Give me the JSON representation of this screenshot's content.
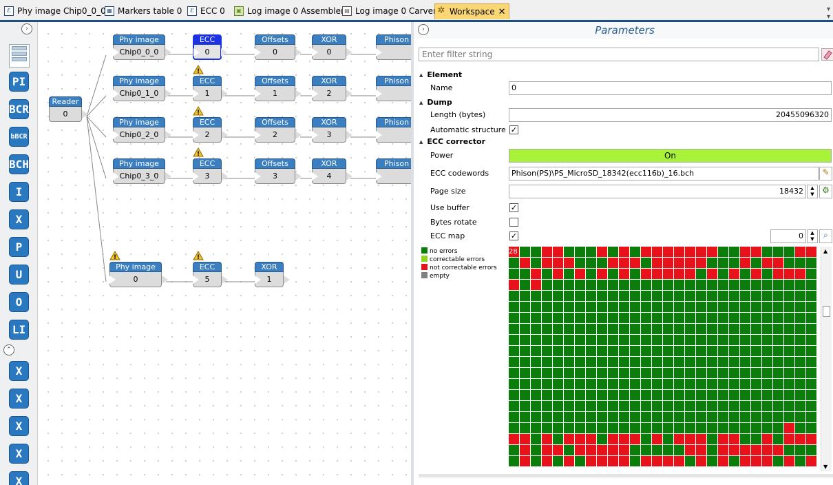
{
  "tabs": [
    {
      "label": "Phy image Chip0_0_0",
      "icon": "phy-image-icon",
      "active": false
    },
    {
      "label": "Markers table 0",
      "icon": "table-icon",
      "active": false
    },
    {
      "label": "ECC 0",
      "icon": "ecc-icon",
      "active": false
    },
    {
      "label": "Log image 0 Assembler",
      "icon": "assembler-icon",
      "active": false
    },
    {
      "label": "Log image 0 Carver",
      "icon": "carver-icon",
      "active": false
    },
    {
      "label": "Workspace",
      "icon": "workspace-icon",
      "active": true
    }
  ],
  "toolbar": {
    "tools": [
      "PI",
      "BCR",
      "bBCR",
      "BCH",
      "I",
      "X",
      "P",
      "U",
      "O",
      "LI",
      "X",
      "X",
      "X",
      "X",
      "X"
    ]
  },
  "graph": {
    "reader": {
      "title": "Reader",
      "value": "0"
    },
    "rows": [
      {
        "phy": "Chip0_0_0",
        "ecc": "0",
        "offsets": "0",
        "xor": "0",
        "phison": "Phison"
      },
      {
        "phy": "Chip0_1_0",
        "ecc": "1",
        "offsets": "1",
        "xor": "2",
        "phison": "Phison"
      },
      {
        "phy": "Chip0_2_0",
        "ecc": "2",
        "offsets": "2",
        "xor": "3",
        "phison": "Phison"
      },
      {
        "phy": "Chip0_3_0",
        "ecc": "3",
        "offsets": "3",
        "xor": "4",
        "phison": "Phison"
      }
    ],
    "extra": {
      "phy": "0",
      "ecc": "5",
      "xor": "1"
    },
    "labels": {
      "phy": "Phy image",
      "ecc": "ECC",
      "offsets": "Offsets",
      "xor": "XOR"
    }
  },
  "panel": {
    "title": "Parameters",
    "filter_placeholder": "Enter filter string",
    "sections": {
      "element": "Element",
      "dump": "Dump",
      "ecc": "ECC corrector"
    },
    "fields": {
      "name_label": "Name",
      "name_value": "0",
      "length_label": "Length (bytes)",
      "length_value": "20455096320",
      "auto_label": "Automatic structure",
      "auto_checked": true,
      "power_label": "Power",
      "power_value": "On",
      "codewords_label": "ECC codewords",
      "codewords_value": "Phison(PS)\\PS_MicroSD_18342(ecc116b)_16.bch",
      "pagesize_label": "Page size",
      "pagesize_value": "18432",
      "buffer_label": "Use buffer",
      "buffer_checked": true,
      "rotate_label": "Bytes rotate",
      "rotate_checked": false,
      "eccmap_label": "ECC map",
      "eccmap_checked": true,
      "eccmap_value": "0"
    },
    "legend": [
      {
        "label": "no errors",
        "color": "#0a7d0a"
      },
      {
        "label": "correctable errors",
        "color": "#8fd61e"
      },
      {
        "label": "not correctable errors",
        "color": "#e8121a"
      },
      {
        "label": "empty",
        "color": "#808080"
      }
    ],
    "eccmap_first_label": "28"
  }
}
